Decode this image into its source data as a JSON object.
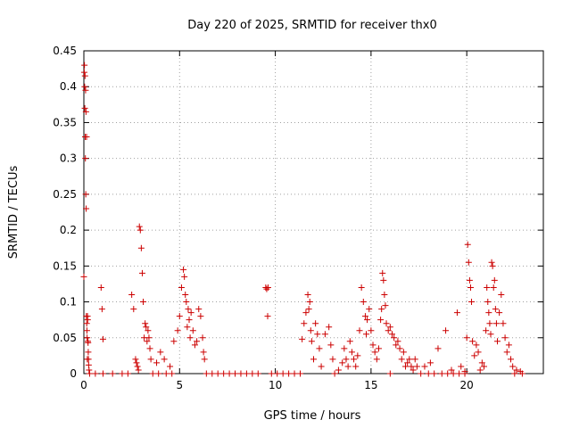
{
  "chart_data": {
    "type": "scatter",
    "title": "Day 220 of 2025, SRMTID for receiver thx0",
    "xlabel": "GPS time / hours",
    "ylabel": "SRMTID / TECUs",
    "xlim": [
      0,
      24
    ],
    "ylim": [
      0,
      0.45
    ],
    "xticks": [
      "0",
      "5",
      "10",
      "15",
      "20"
    ],
    "yticks": [
      "0",
      "0.05",
      "0.1",
      "0.15",
      "0.2",
      "0.25",
      "0.3",
      "0.35",
      "0.4",
      "0.45"
    ],
    "grid": true,
    "marker": "plus",
    "color": "#cc0000",
    "series": [
      {
        "x": [
          0.0,
          0.02,
          0.04,
          0.05,
          0.07,
          0.08,
          0.1,
          0.12,
          0.13,
          0.15,
          0.17,
          0.18,
          0.2,
          0.22,
          0.23,
          0.25,
          0.27,
          0.03,
          0.06,
          0.09,
          0.11,
          0.14,
          0.16,
          0.19,
          0.21,
          0.24,
          0.9,
          0.95,
          1.0,
          2.5,
          2.6,
          2.7,
          2.75,
          2.8,
          2.85,
          2.9,
          2.95,
          3.0,
          3.05,
          3.1,
          3.15,
          3.2,
          3.25,
          3.3,
          3.35,
          3.4,
          3.45,
          3.5,
          3.8,
          4.0,
          4.2,
          4.5,
          4.7,
          4.9,
          5.0,
          5.1,
          5.2,
          5.25,
          5.3,
          5.35,
          5.4,
          5.45,
          5.5,
          5.55,
          5.6,
          5.7,
          5.8,
          5.9,
          6.0,
          6.1,
          6.2,
          6.25,
          6.3,
          9.5,
          9.55,
          9.6,
          9.62,
          11.4,
          11.5,
          11.6,
          11.7,
          11.75,
          11.8,
          11.85,
          11.9,
          12.0,
          12.1,
          12.2,
          12.3,
          12.4,
          12.6,
          12.8,
          12.9,
          13.0,
          13.3,
          13.5,
          13.6,
          13.7,
          13.8,
          13.9,
          14.0,
          14.1,
          14.2,
          14.3,
          14.4,
          14.5,
          14.6,
          14.7,
          14.75,
          14.8,
          14.9,
          15.0,
          15.1,
          15.2,
          15.3,
          15.4,
          15.5,
          15.55,
          15.6,
          15.65,
          15.7,
          15.75,
          15.8,
          15.9,
          16.0,
          16.1,
          16.2,
          16.3,
          16.4,
          16.5,
          16.6,
          16.7,
          16.8,
          16.9,
          17.0,
          17.1,
          17.2,
          17.3,
          17.4,
          17.8,
          18.1,
          18.5,
          18.9,
          19.2,
          19.5,
          19.7,
          19.9,
          20.0,
          20.05,
          20.1,
          20.15,
          20.2,
          20.25,
          20.3,
          20.4,
          20.5,
          20.6,
          20.7,
          20.8,
          20.9,
          21.0,
          21.05,
          21.1,
          21.15,
          21.2,
          21.25,
          21.3,
          21.35,
          21.4,
          21.45,
          21.5,
          21.55,
          21.6,
          21.7,
          21.8,
          21.9,
          22.0,
          22.1,
          22.2,
          22.3,
          22.4,
          22.6,
          22.8
        ],
        "y": [
          0.135,
          0.42,
          0.4,
          0.37,
          0.33,
          0.3,
          0.25,
          0.23,
          0.08,
          0.07,
          0.05,
          0.02,
          0.075,
          0.043,
          0.03,
          0.012,
          0.005,
          0.43,
          0.415,
          0.395,
          0.365,
          0.33,
          0.06,
          0.08,
          0.045,
          0.02,
          0.12,
          0.09,
          0.048,
          0.11,
          0.09,
          0.02,
          0.015,
          0.01,
          0.005,
          0.205,
          0.2,
          0.175,
          0.14,
          0.1,
          0.05,
          0.07,
          0.065,
          0.045,
          0.06,
          0.05,
          0.035,
          0.02,
          0.015,
          0.03,
          0.02,
          0.01,
          0.045,
          0.06,
          0.08,
          0.12,
          0.145,
          0.135,
          0.11,
          0.1,
          0.065,
          0.09,
          0.075,
          0.05,
          0.085,
          0.06,
          0.04,
          0.045,
          0.09,
          0.08,
          0.05,
          0.03,
          0.02,
          0.12,
          0.118,
          0.08,
          0.12,
          0.048,
          0.07,
          0.085,
          0.11,
          0.09,
          0.1,
          0.06,
          0.045,
          0.02,
          0.07,
          0.055,
          0.035,
          0.01,
          0.055,
          0.065,
          0.04,
          0.02,
          0.005,
          0.015,
          0.035,
          0.02,
          0.01,
          0.045,
          0.03,
          0.02,
          0.01,
          0.025,
          0.06,
          0.12,
          0.1,
          0.08,
          0.055,
          0.075,
          0.09,
          0.06,
          0.04,
          0.03,
          0.02,
          0.035,
          0.075,
          0.09,
          0.14,
          0.13,
          0.11,
          0.095,
          0.07,
          0.06,
          0.065,
          0.055,
          0.05,
          0.04,
          0.045,
          0.035,
          0.02,
          0.03,
          0.01,
          0.015,
          0.02,
          0.01,
          0.005,
          0.02,
          0.01,
          0.01,
          0.015,
          0.035,
          0.06,
          0.005,
          0.085,
          0.01,
          0.003,
          0.05,
          0.18,
          0.155,
          0.13,
          0.12,
          0.1,
          0.045,
          0.025,
          0.04,
          0.03,
          0.005,
          0.015,
          0.01,
          0.06,
          0.12,
          0.1,
          0.085,
          0.07,
          0.055,
          0.155,
          0.15,
          0.12,
          0.13,
          0.09,
          0.07,
          0.045,
          0.085,
          0.11,
          0.07,
          0.05,
          0.03,
          0.04,
          0.02,
          0.01,
          0.005,
          0.003
        ]
      },
      {
        "x": [
          0.3,
          0.6,
          1.0,
          1.5,
          2.0,
          2.3,
          3.6,
          3.9,
          4.3,
          4.6,
          6.4,
          6.7,
          7.0,
          7.3,
          7.6,
          7.9,
          8.2,
          8.5,
          8.8,
          9.1,
          9.8,
          10.1,
          10.4,
          10.7,
          11.0,
          11.3,
          13.1,
          16.0,
          17.6,
          18.0,
          18.3,
          18.7,
          19.0,
          19.3,
          19.6,
          19.9,
          22.5,
          22.9
        ],
        "y": [
          0,
          0,
          0,
          0,
          0,
          0,
          0,
          0,
          0,
          0,
          0,
          0,
          0,
          0,
          0,
          0,
          0,
          0,
          0,
          0,
          0,
          0,
          0,
          0,
          0,
          0,
          0,
          0,
          0,
          0,
          0,
          0,
          0,
          0,
          0,
          0,
          0,
          0
        ]
      }
    ]
  }
}
